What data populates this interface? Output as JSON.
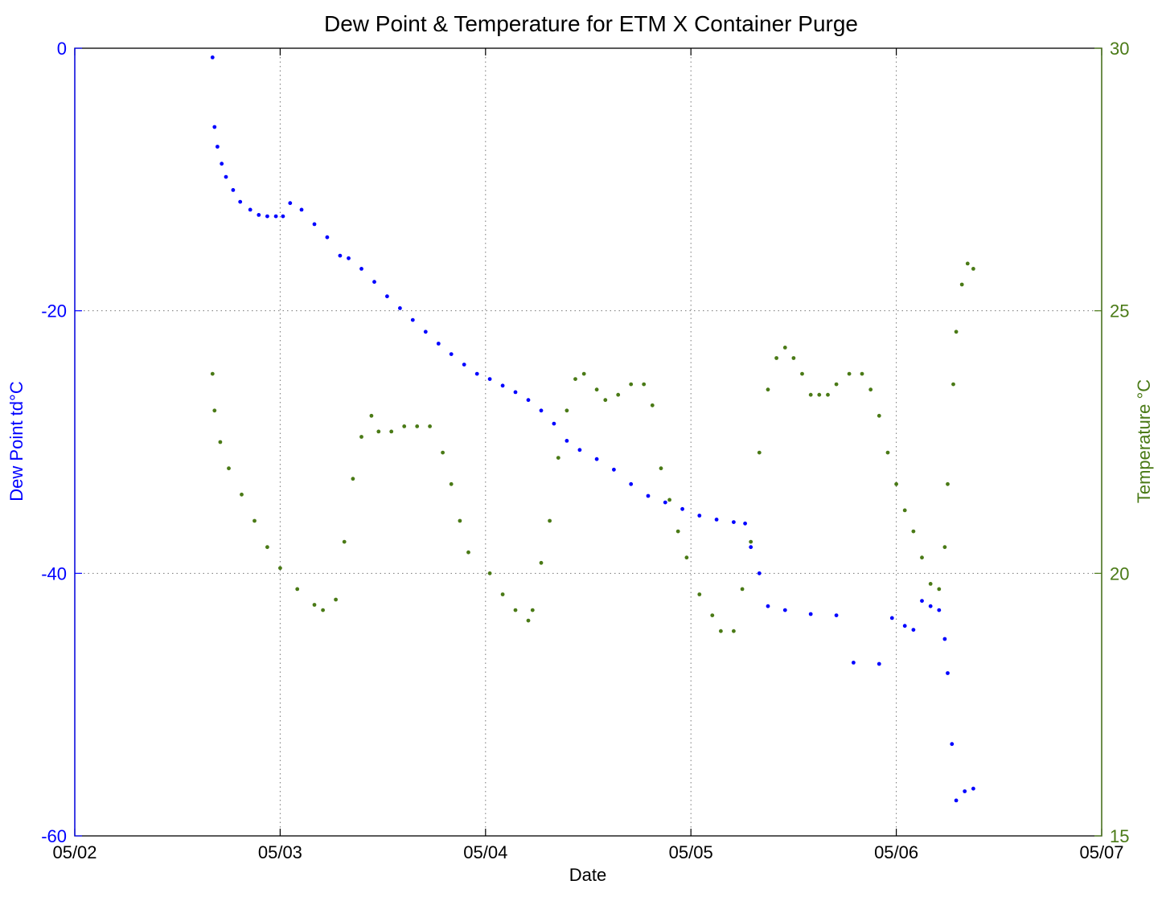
{
  "chart_data": {
    "type": "scatter",
    "title": "Dew Point & Temperature for ETM X Container Purge",
    "xlabel": "Date",
    "ylabel_left": "Dew Point td°C",
    "ylabel_right": "Temperature °C",
    "x_ticks": [
      "05/02",
      "05/03",
      "05/04",
      "05/05",
      "05/06",
      "05/07"
    ],
    "xlim": [
      "05/02",
      "05/07"
    ],
    "y_left_ticks": [
      "0",
      "-20",
      "-40",
      "-60"
    ],
    "ylim_left": [
      -60,
      0
    ],
    "y_right_ticks": [
      "30",
      "25",
      "20",
      "15"
    ],
    "ylim_right": [
      15,
      30
    ],
    "grid": true,
    "colors": {
      "dew_point": "#0000ff",
      "temperature": "#4a7a16",
      "axes": "#000000"
    },
    "series": [
      {
        "axis": "left",
        "color": "#0000ff",
        "points": [
          [
            "05/02 16:06",
            -0.7
          ],
          [
            "05/02 16:20",
            -6.0
          ],
          [
            "05/02 16:40",
            -7.5
          ],
          [
            "05/02 17:10",
            -8.8
          ],
          [
            "05/02 17:40",
            -9.8
          ],
          [
            "05/02 18:30",
            -10.8
          ],
          [
            "05/02 19:20",
            -11.7
          ],
          [
            "05/02 20:30",
            -12.3
          ],
          [
            "05/02 21:30",
            -12.7
          ],
          [
            "05/02 22:30",
            -12.8
          ],
          [
            "05/02 23:30",
            -12.8
          ],
          [
            "05/03 00:20",
            -12.8
          ],
          [
            "05/03 01:10",
            -11.8
          ],
          [
            "05/03 02:30",
            -12.3
          ],
          [
            "05/03 04:00",
            -13.4
          ],
          [
            "05/03 05:30",
            -14.4
          ],
          [
            "05/03 07:00",
            -15.8
          ],
          [
            "05/03 08:00",
            -16.0
          ],
          [
            "05/03 09:30",
            -16.8
          ],
          [
            "05/03 11:00",
            -17.8
          ],
          [
            "05/03 12:30",
            -18.9
          ],
          [
            "05/03 14:00",
            -19.8
          ],
          [
            "05/03 15:30",
            -20.7
          ],
          [
            "05/03 17:00",
            -21.6
          ],
          [
            "05/03 18:30",
            -22.5
          ],
          [
            "05/03 20:00",
            -23.3
          ],
          [
            "05/03 21:30",
            -24.1
          ],
          [
            "05/03 23:00",
            -24.8
          ],
          [
            "05/04 00:30",
            -25.2
          ],
          [
            "05/04 02:00",
            -25.7
          ],
          [
            "05/04 03:30",
            -26.2
          ],
          [
            "05/04 05:00",
            -26.8
          ],
          [
            "05/04 06:30",
            -27.6
          ],
          [
            "05/04 08:00",
            -28.6
          ],
          [
            "05/04 09:30",
            -29.9
          ],
          [
            "05/04 11:00",
            -30.6
          ],
          [
            "05/04 13:00",
            -31.3
          ],
          [
            "05/04 15:00",
            -32.1
          ],
          [
            "05/04 17:00",
            -33.2
          ],
          [
            "05/04 19:00",
            -34.1
          ],
          [
            "05/04 21:00",
            -34.6
          ],
          [
            "05/04 23:00",
            -35.1
          ],
          [
            "05/05 01:00",
            -35.6
          ],
          [
            "05/05 03:00",
            -35.9
          ],
          [
            "05/05 05:00",
            -36.1
          ],
          [
            "05/05 06:20",
            -36.2
          ],
          [
            "05/05 07:00",
            -38.0
          ],
          [
            "05/05 08:00",
            -40.0
          ],
          [
            "05/05 09:00",
            -42.5
          ],
          [
            "05/05 11:00",
            -42.8
          ],
          [
            "05/05 14:00",
            -43.1
          ],
          [
            "05/05 17:00",
            -43.2
          ],
          [
            "05/05 19:00",
            -46.8
          ],
          [
            "05/05 22:00",
            -46.9
          ],
          [
            "05/05 23:30",
            -43.4
          ],
          [
            "05/06 01:00",
            -44.0
          ],
          [
            "05/06 02:00",
            -44.3
          ],
          [
            "05/06 03:00",
            -42.1
          ],
          [
            "05/06 04:00",
            -42.5
          ],
          [
            "05/06 05:00",
            -42.8
          ],
          [
            "05/06 05:40",
            -45.0
          ],
          [
            "05/06 06:00",
            -47.6
          ],
          [
            "05/06 06:30",
            -53.0
          ],
          [
            "05/06 07:00",
            -57.3
          ],
          [
            "05/06 08:00",
            -56.6
          ],
          [
            "05/06 09:00",
            -56.4
          ]
        ]
      },
      {
        "axis": "right",
        "color": "#4a7a16",
        "points": [
          [
            "05/02 16:06",
            23.8
          ],
          [
            "05/02 16:20",
            23.1
          ],
          [
            "05/02 17:00",
            22.5
          ],
          [
            "05/02 18:00",
            22.0
          ],
          [
            "05/02 19:30",
            21.5
          ],
          [
            "05/02 21:00",
            21.0
          ],
          [
            "05/02 22:30",
            20.5
          ],
          [
            "05/03 00:00",
            20.1
          ],
          [
            "05/03 02:00",
            19.7
          ],
          [
            "05/03 04:00",
            19.4
          ],
          [
            "05/03 05:00",
            19.3
          ],
          [
            "05/03 06:30",
            19.5
          ],
          [
            "05/03 07:30",
            20.6
          ],
          [
            "05/03 08:30",
            21.8
          ],
          [
            "05/03 09:30",
            22.6
          ],
          [
            "05/03 10:40",
            23.0
          ],
          [
            "05/03 11:30",
            22.7
          ],
          [
            "05/03 13:00",
            22.7
          ],
          [
            "05/03 14:30",
            22.8
          ],
          [
            "05/03 16:00",
            22.8
          ],
          [
            "05/03 17:30",
            22.8
          ],
          [
            "05/03 19:00",
            22.3
          ],
          [
            "05/03 20:00",
            21.7
          ],
          [
            "05/03 21:00",
            21.0
          ],
          [
            "05/03 22:00",
            20.4
          ],
          [
            "05/04 00:30",
            20.0
          ],
          [
            "05/04 02:00",
            19.6
          ],
          [
            "05/04 03:30",
            19.3
          ],
          [
            "05/04 05:00",
            19.1
          ],
          [
            "05/04 05:30",
            19.3
          ],
          [
            "05/04 06:30",
            20.2
          ],
          [
            "05/04 07:30",
            21.0
          ],
          [
            "05/04 08:30",
            22.2
          ],
          [
            "05/04 09:30",
            23.1
          ],
          [
            "05/04 10:30",
            23.7
          ],
          [
            "05/04 11:30",
            23.8
          ],
          [
            "05/04 13:00",
            23.5
          ],
          [
            "05/04 14:00",
            23.3
          ],
          [
            "05/04 15:30",
            23.4
          ],
          [
            "05/04 17:00",
            23.6
          ],
          [
            "05/04 18:30",
            23.6
          ],
          [
            "05/04 19:30",
            23.2
          ],
          [
            "05/04 20:30",
            22.0
          ],
          [
            "05/04 21:30",
            21.4
          ],
          [
            "05/04 22:30",
            20.8
          ],
          [
            "05/04 23:30",
            20.3
          ],
          [
            "05/05 01:00",
            19.6
          ],
          [
            "05/05 02:30",
            19.2
          ],
          [
            "05/05 03:30",
            18.9
          ],
          [
            "05/05 05:00",
            18.9
          ],
          [
            "05/05 06:00",
            19.7
          ],
          [
            "05/05 07:00",
            20.6
          ],
          [
            "05/05 08:00",
            22.3
          ],
          [
            "05/05 09:00",
            23.5
          ],
          [
            "05/05 10:00",
            24.1
          ],
          [
            "05/05 11:00",
            24.3
          ],
          [
            "05/05 12:00",
            24.1
          ],
          [
            "05/05 13:00",
            23.8
          ],
          [
            "05/05 14:00",
            23.4
          ],
          [
            "05/05 15:00",
            23.4
          ],
          [
            "05/05 16:00",
            23.4
          ],
          [
            "05/05 17:00",
            23.6
          ],
          [
            "05/05 18:30",
            23.8
          ],
          [
            "05/05 20:00",
            23.8
          ],
          [
            "05/05 21:00",
            23.5
          ],
          [
            "05/05 22:00",
            23.0
          ],
          [
            "05/05 23:00",
            22.3
          ],
          [
            "05/06 00:00",
            21.7
          ],
          [
            "05/06 01:00",
            21.2
          ],
          [
            "05/06 02:00",
            20.8
          ],
          [
            "05/06 03:00",
            20.3
          ],
          [
            "05/06 04:00",
            19.8
          ],
          [
            "05/06 05:00",
            19.7
          ],
          [
            "05/06 05:40",
            20.5
          ],
          [
            "05/06 06:00",
            21.7
          ],
          [
            "05/06 06:40",
            23.6
          ],
          [
            "05/06 07:00",
            24.6
          ],
          [
            "05/06 07:40",
            25.5
          ],
          [
            "05/06 08:20",
            25.9
          ],
          [
            "05/06 09:00",
            25.8
          ]
        ]
      }
    ]
  }
}
